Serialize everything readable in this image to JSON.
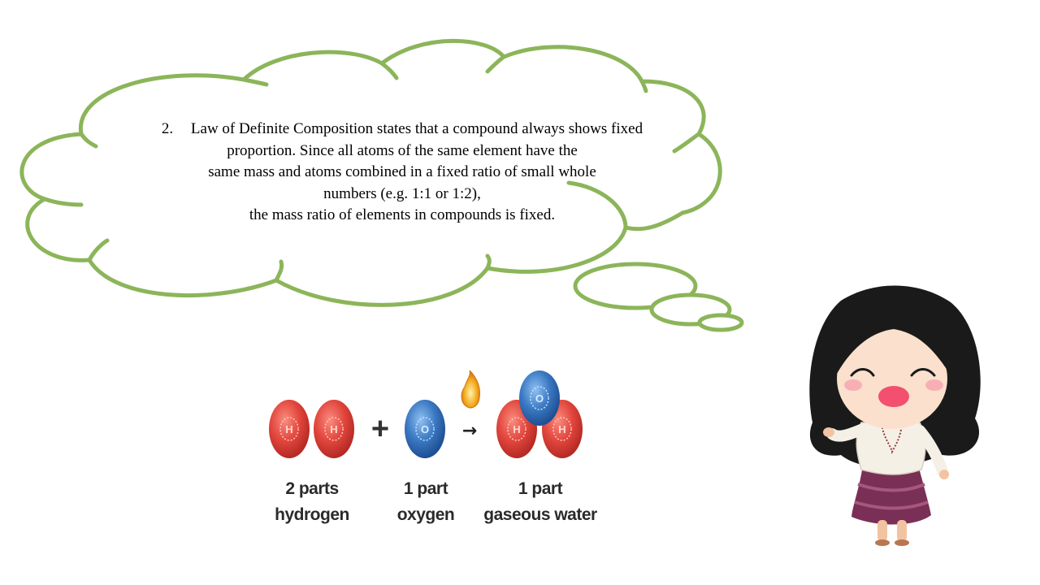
{
  "slide": {
    "cloud_text": {
      "number": "2.",
      "lines": [
        "Law of Definite Composition states that a compound always shows fixed",
        "proportion. Since all atoms of the same element have the",
        "same mass and atoms combined in a fixed ratio of small whole",
        "numbers (e.g. 1:1 or 1:2),",
        "the mass ratio of elements in compounds is fixed."
      ]
    },
    "reaction": {
      "plus": "+",
      "arrow": "→",
      "atom_letters": {
        "hydrogen": "H",
        "oxygen": "O"
      },
      "labels": {
        "hydrogen": [
          "2 parts",
          "hydrogen"
        ],
        "oxygen": [
          "1 part",
          "oxygen"
        ],
        "water": [
          "1 part",
          "gaseous water"
        ]
      }
    },
    "colors": {
      "cloud_stroke": "#8cb55a",
      "hydrogen_atom": "#e2463d",
      "oxygen_atom": "#3a78c2",
      "flame": "#f2a81d"
    },
    "icons": {
      "flame": "flame-icon",
      "character": "cartoon-girl-waving"
    }
  }
}
